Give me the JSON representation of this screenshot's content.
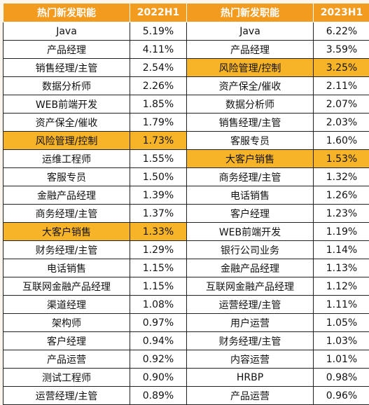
{
  "chart_data": {
    "type": "table",
    "columns": [
      "热门新发职能",
      "2022H1",
      "热门新发职能",
      "2023H1"
    ],
    "highlight_color": "#f7b428",
    "header_color": "#f29b1f",
    "rows_2022H1": [
      {
        "name": "Java",
        "value": "5.19%"
      },
      {
        "name": "产品经理",
        "value": "4.11%"
      },
      {
        "name": "销售经理/主管",
        "value": "2.54%"
      },
      {
        "name": "数据分析师",
        "value": "2.26%"
      },
      {
        "name": "WEB前端开发",
        "value": "1.85%"
      },
      {
        "name": "资产保全/催收",
        "value": "1.79%"
      },
      {
        "name": "风险管理/控制",
        "value": "1.73%",
        "highlight": true
      },
      {
        "name": "运维工程师",
        "value": "1.55%"
      },
      {
        "name": "客服专员",
        "value": "1.50%"
      },
      {
        "name": "金融产品经理",
        "value": "1.39%"
      },
      {
        "name": "商务经理/主管",
        "value": "1.37%"
      },
      {
        "name": "大客户销售",
        "value": "1.33%",
        "highlight": true
      },
      {
        "name": "财务经理/主管",
        "value": "1.29%"
      },
      {
        "name": "电话销售",
        "value": "1.15%"
      },
      {
        "name": "互联网金融产品经理",
        "value": "1.15%"
      },
      {
        "name": "渠道经理",
        "value": "1.08%"
      },
      {
        "name": "架构师",
        "value": "0.97%"
      },
      {
        "name": "客户经理",
        "value": "0.94%"
      },
      {
        "name": "产品运营",
        "value": "0.92%"
      },
      {
        "name": "测试工程师",
        "value": "0.90%"
      },
      {
        "name": "运营经理/主管",
        "value": "0.89%"
      }
    ],
    "rows_2023H1": [
      {
        "name": "Java",
        "value": "6.22%"
      },
      {
        "name": "产品经理",
        "value": "3.59%"
      },
      {
        "name": "风险管理/控制",
        "value": "3.25%",
        "highlight": true
      },
      {
        "name": "资产保全/催收",
        "value": "2.11%"
      },
      {
        "name": "数据分析师",
        "value": "2.07%"
      },
      {
        "name": "销售经理/主管",
        "value": "2.03%"
      },
      {
        "name": "客服专员",
        "value": "1.60%"
      },
      {
        "name": "大客户销售",
        "value": "1.53%",
        "highlight": true
      },
      {
        "name": "商务经理/主管",
        "value": "1.32%"
      },
      {
        "name": "电话销售",
        "value": "1.26%"
      },
      {
        "name": "客户经理",
        "value": "1.23%"
      },
      {
        "name": "WEB前端开发",
        "value": "1.19%"
      },
      {
        "name": "银行公司业务",
        "value": "1.14%"
      },
      {
        "name": "金融产品经理",
        "value": "1.13%"
      },
      {
        "name": "互联网金融产品经理",
        "value": "1.12%"
      },
      {
        "name": "运营经理/主管",
        "value": "1.11%"
      },
      {
        "name": "用户运营",
        "value": "1.05%"
      },
      {
        "name": "财务经理/主管",
        "value": "1.03%"
      },
      {
        "name": "内容运营",
        "value": "1.01%"
      },
      {
        "name": "HRBP",
        "value": "0.98%"
      },
      {
        "name": "产品运营",
        "value": "0.96%"
      }
    ]
  }
}
